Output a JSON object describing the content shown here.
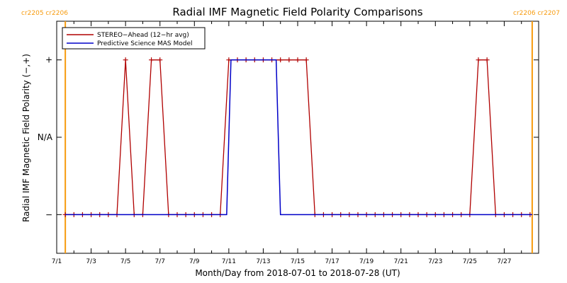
{
  "chart_data": {
    "type": "line",
    "title": "Radial IMF Magnetic Field Polarity Comparisons",
    "xlabel": "Month/Day from 2018-07-01 to 2018-07-28 (UT)",
    "ylabel": "Radial IMF Magnetic Field Polarity (−,+)",
    "x_range": [
      "2018-07-01",
      "2018-07-29"
    ],
    "x_tick_labels": [
      "7/1",
      "7/3",
      "7/5",
      "7/7",
      "7/9",
      "7/11",
      "7/13",
      "7/15",
      "7/17",
      "7/19",
      "7/21",
      "7/23",
      "7/25",
      "7/27"
    ],
    "y_categories": [
      "−",
      "N/A",
      "+"
    ],
    "y_tick_labels": [
      "−",
      "N/A",
      "+"
    ],
    "y_range": [
      -1.5,
      1.5
    ],
    "legend_position": "top-left",
    "rotation_labels": {
      "left": [
        "cr2205",
        "cr2206"
      ],
      "right": [
        "cr2206",
        "cr2207"
      ]
    },
    "rotation_boundaries": [
      "2018-07-01T12:00",
      "2018-07-28T15:00"
    ],
    "colors": {
      "stereo": "#b00000",
      "mas": "#0000c8",
      "rotation": "#f79b0e"
    },
    "series": [
      {
        "name": "STEREO−Ahead (12−hr avg)",
        "color": "#b00000",
        "marker": "plus",
        "x": [
          "2018-07-01T12:00",
          "2018-07-02T00:00",
          "2018-07-02T12:00",
          "2018-07-03T00:00",
          "2018-07-03T12:00",
          "2018-07-04T00:00",
          "2018-07-04T12:00",
          "2018-07-05T00:00",
          "2018-07-05T12:00",
          "2018-07-06T00:00",
          "2018-07-06T12:00",
          "2018-07-07T00:00",
          "2018-07-07T12:00",
          "2018-07-08T00:00",
          "2018-07-08T12:00",
          "2018-07-09T00:00",
          "2018-07-09T12:00",
          "2018-07-10T00:00",
          "2018-07-10T12:00",
          "2018-07-11T00:00",
          "2018-07-11T12:00",
          "2018-07-12T00:00",
          "2018-07-12T12:00",
          "2018-07-13T00:00",
          "2018-07-13T12:00",
          "2018-07-14T00:00",
          "2018-07-14T12:00",
          "2018-07-15T00:00",
          "2018-07-15T12:00",
          "2018-07-16T00:00",
          "2018-07-16T12:00",
          "2018-07-17T00:00",
          "2018-07-17T12:00",
          "2018-07-18T00:00",
          "2018-07-18T12:00",
          "2018-07-19T00:00",
          "2018-07-19T12:00",
          "2018-07-20T00:00",
          "2018-07-20T12:00",
          "2018-07-21T00:00",
          "2018-07-21T12:00",
          "2018-07-22T00:00",
          "2018-07-22T12:00",
          "2018-07-23T00:00",
          "2018-07-23T12:00",
          "2018-07-24T00:00",
          "2018-07-24T12:00",
          "2018-07-25T00:00",
          "2018-07-25T12:00",
          "2018-07-26T00:00",
          "2018-07-26T12:00",
          "2018-07-27T00:00",
          "2018-07-27T12:00",
          "2018-07-28T00:00",
          "2018-07-28T12:00"
        ],
        "y": [
          -1,
          -1,
          -1,
          -1,
          -1,
          -1,
          -1,
          1,
          -1,
          -1,
          1,
          1,
          -1,
          -1,
          -1,
          -1,
          -1,
          -1,
          -1,
          1,
          1,
          1,
          1,
          1,
          1,
          1,
          1,
          1,
          1,
          -1,
          -1,
          -1,
          -1,
          -1,
          -1,
          -1,
          -1,
          -1,
          -1,
          -1,
          -1,
          -1,
          -1,
          -1,
          -1,
          -1,
          -1,
          -1,
          1,
          1,
          -1,
          -1,
          -1,
          -1,
          -1
        ]
      },
      {
        "name": "Predictive Science MAS Model",
        "color": "#0000c8",
        "marker": "none",
        "x": [
          "2018-07-01T12:00",
          "2018-07-10T21:00",
          "2018-07-11T03:00",
          "2018-07-13T18:00",
          "2018-07-14T00:00",
          "2018-07-28T15:00"
        ],
        "y": [
          -1,
          -1,
          1,
          1,
          -1,
          -1
        ]
      }
    ]
  }
}
